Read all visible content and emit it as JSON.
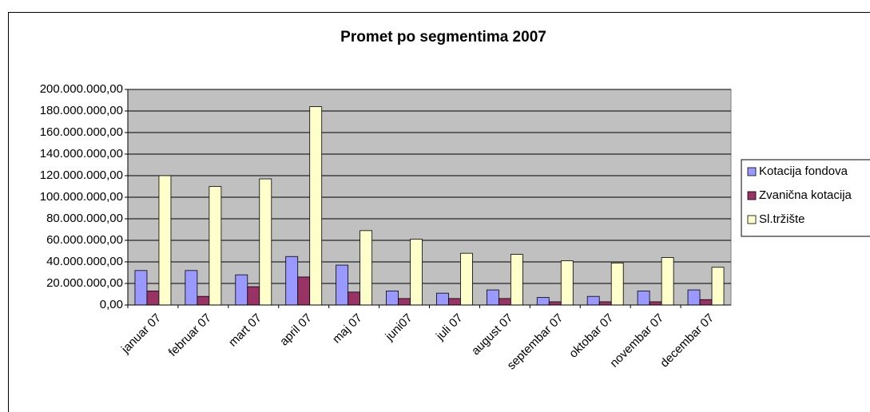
{
  "chart_data": {
    "type": "bar",
    "title": "Promet po segmentima 2007",
    "categories": [
      "januar 07",
      "februar 07",
      "mart 07",
      "april 07",
      "maj 07",
      "juni07",
      "juli 07",
      "august 07",
      "septembar 07",
      "oktobar 07",
      "novembar 07",
      "decembar 07"
    ],
    "series": [
      {
        "name": "Kotacija fondova",
        "color": "#9999ff",
        "values": [
          32000000,
          32000000,
          28000000,
          45000000,
          37000000,
          13000000,
          11000000,
          14000000,
          7000000,
          8000000,
          13000000,
          14000000
        ]
      },
      {
        "name": "Zvanična kotacija",
        "color": "#993366",
        "values": [
          13000000,
          8000000,
          17000000,
          26000000,
          12000000,
          6000000,
          6000000,
          6000000,
          3000000,
          3000000,
          3000000,
          5000000
        ]
      },
      {
        "name": "Sl.tržište",
        "color": "#ffffcc",
        "values": [
          120000000,
          110000000,
          117000000,
          184000000,
          69000000,
          61000000,
          48000000,
          47000000,
          41000000,
          39000000,
          44000000,
          35000000
        ]
      }
    ],
    "ylim": [
      0,
      200000000
    ],
    "yticks": [
      {
        "value": 0,
        "label": "0,00"
      },
      {
        "value": 20000000,
        "label": "20.000.000,00"
      },
      {
        "value": 40000000,
        "label": "40.000.000,00"
      },
      {
        "value": 60000000,
        "label": "60.000.000,00"
      },
      {
        "value": 80000000,
        "label": "80.000.000,00"
      },
      {
        "value": 100000000,
        "label": "100.000.000,00"
      },
      {
        "value": 120000000,
        "label": "120.000.000,00"
      },
      {
        "value": 140000000,
        "label": "140.000.000,00"
      },
      {
        "value": 160000000,
        "label": "160.000.000,00"
      },
      {
        "value": 180000000,
        "label": "180.000.000,00"
      },
      {
        "value": 200000000,
        "label": "200.000.000,00"
      }
    ],
    "grid": true,
    "plot_background": "#c0c0c0",
    "legend": "right"
  }
}
